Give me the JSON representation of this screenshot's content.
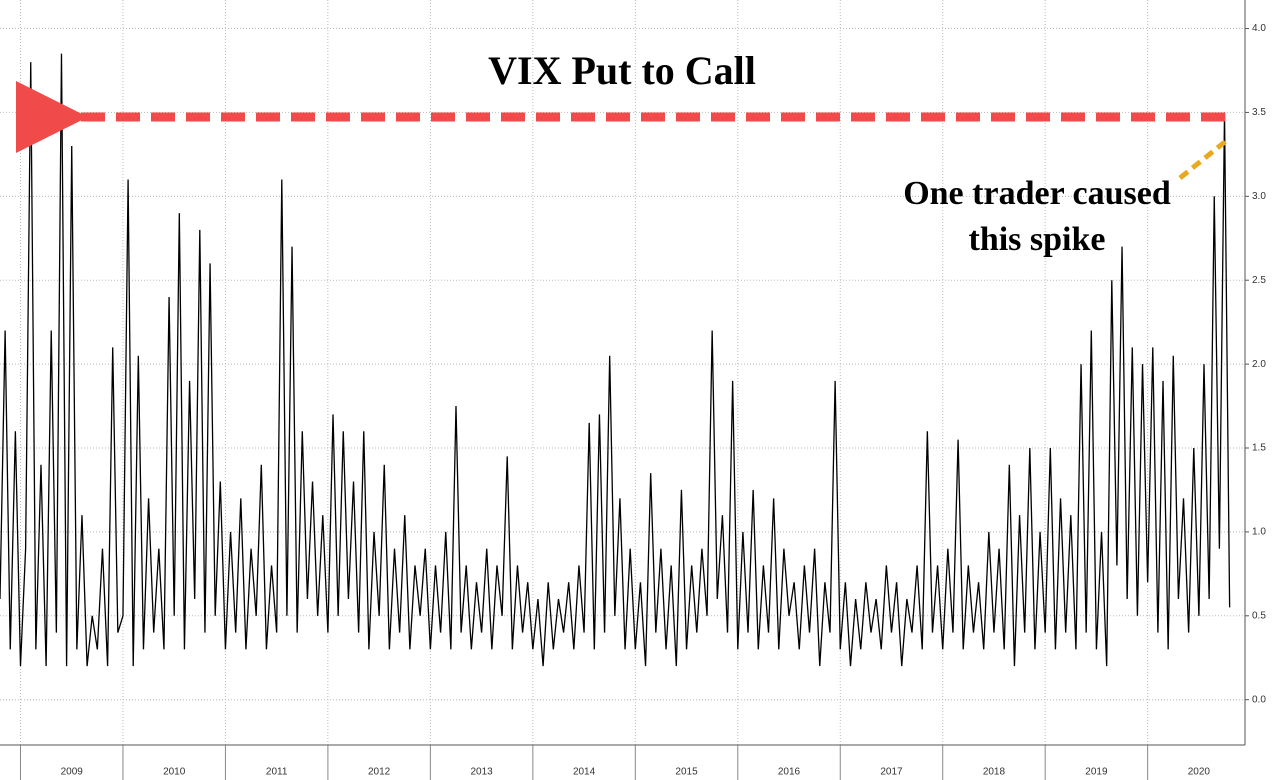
{
  "chart_data": {
    "type": "line",
    "title": "VIX Put to Call",
    "annotation": [
      "One trader caused",
      "this spike"
    ],
    "color": "#000000",
    "grid": true,
    "annotation_arrow_color": "#e8a820",
    "title_arrow_color": "#f04a4a",
    "xlim": [
      2008.8,
      2020.95
    ],
    "ylim": [
      -0.27,
      4.17
    ],
    "xticks": [
      {
        "value": 2009.5,
        "label": "2009"
      },
      {
        "value": 2010.5,
        "label": "2010"
      },
      {
        "value": 2011.5,
        "label": "2011"
      },
      {
        "value": 2012.5,
        "label": "2012"
      },
      {
        "value": 2013.5,
        "label": "2013"
      },
      {
        "value": 2014.5,
        "label": "2014"
      },
      {
        "value": 2015.5,
        "label": "2015"
      },
      {
        "value": 2016.5,
        "label": "2016"
      },
      {
        "value": 2017.5,
        "label": "2017"
      },
      {
        "value": 2018.5,
        "label": "2018"
      },
      {
        "value": 2019.5,
        "label": "2019"
      },
      {
        "value": 2020.5,
        "label": "2020"
      }
    ],
    "yticks": [
      {
        "value": 0,
        "label": "0.0"
      },
      0.5,
      {
        "value": 1,
        "label": "1.0"
      },
      1.5,
      {
        "value": 2,
        "label": "2.0"
      },
      2.5,
      {
        "value": 3,
        "label": "3.0"
      },
      3.5,
      {
        "value": 4,
        "label": "4.0"
      }
    ],
    "x": [
      2008.8,
      2008.85,
      2008.9,
      2008.95,
      2009.0,
      2009.05,
      2009.1,
      2009.15,
      2009.2,
      2009.25,
      2009.3,
      2009.35,
      2009.4,
      2009.45,
      2009.5,
      2009.55,
      2009.6,
      2009.65,
      2009.7,
      2009.75,
      2009.8,
      2009.85,
      2009.9,
      2009.95,
      2010.0,
      2010.05,
      2010.1,
      2010.15,
      2010.2,
      2010.25,
      2010.3,
      2010.35,
      2010.4,
      2010.45,
      2010.5,
      2010.55,
      2010.6,
      2010.65,
      2010.7,
      2010.75,
      2010.8,
      2010.85,
      2010.9,
      2010.95,
      2011.0,
      2011.05,
      2011.1,
      2011.15,
      2011.2,
      2011.25,
      2011.3,
      2011.35,
      2011.4,
      2011.45,
      2011.5,
      2011.55,
      2011.6,
      2011.65,
      2011.7,
      2011.75,
      2011.8,
      2011.85,
      2011.9,
      2011.95,
      2012.0,
      2012.05,
      2012.1,
      2012.15,
      2012.2,
      2012.25,
      2012.3,
      2012.35,
      2012.4,
      2012.45,
      2012.5,
      2012.55,
      2012.6,
      2012.65,
      2012.7,
      2012.75,
      2012.8,
      2012.85,
      2012.9,
      2012.95,
      2013.0,
      2013.05,
      2013.1,
      2013.15,
      2013.2,
      2013.25,
      2013.3,
      2013.35,
      2013.4,
      2013.45,
      2013.5,
      2013.55,
      2013.6,
      2013.65,
      2013.7,
      2013.75,
      2013.8,
      2013.85,
      2013.9,
      2013.95,
      2014.0,
      2014.05,
      2014.1,
      2014.15,
      2014.2,
      2014.25,
      2014.3,
      2014.35,
      2014.4,
      2014.45,
      2014.5,
      2014.55,
      2014.6,
      2014.65,
      2014.7,
      2014.75,
      2014.8,
      2014.85,
      2014.9,
      2014.95,
      2015.0,
      2015.05,
      2015.1,
      2015.15,
      2015.2,
      2015.25,
      2015.3,
      2015.35,
      2015.4,
      2015.45,
      2015.5,
      2015.55,
      2015.6,
      2015.65,
      2015.7,
      2015.75,
      2015.8,
      2015.85,
      2015.9,
      2015.95,
      2016.0,
      2016.05,
      2016.1,
      2016.15,
      2016.2,
      2016.25,
      2016.3,
      2016.35,
      2016.4,
      2016.45,
      2016.5,
      2016.55,
      2016.6,
      2016.65,
      2016.7,
      2016.75,
      2016.8,
      2016.85,
      2016.9,
      2016.95,
      2017.0,
      2017.05,
      2017.1,
      2017.15,
      2017.2,
      2017.25,
      2017.3,
      2017.35,
      2017.4,
      2017.45,
      2017.5,
      2017.55,
      2017.6,
      2017.65,
      2017.7,
      2017.75,
      2017.8,
      2017.85,
      2017.9,
      2017.95,
      2018.0,
      2018.05,
      2018.1,
      2018.15,
      2018.2,
      2018.25,
      2018.3,
      2018.35,
      2018.4,
      2018.45,
      2018.5,
      2018.55,
      2018.6,
      2018.65,
      2018.7,
      2018.75,
      2018.8,
      2018.85,
      2018.9,
      2018.95,
      2019.0,
      2019.05,
      2019.1,
      2019.15,
      2019.2,
      2019.25,
      2019.3,
      2019.35,
      2019.4,
      2019.45,
      2019.5,
      2019.55,
      2019.6,
      2019.65,
      2019.7,
      2019.75,
      2019.8,
      2019.85,
      2019.9,
      2019.95,
      2020.0,
      2020.05,
      2020.1,
      2020.15,
      2020.2,
      2020.25,
      2020.3,
      2020.35,
      2020.4,
      2020.45,
      2020.5,
      2020.55,
      2020.6,
      2020.65,
      2020.7,
      2020.75,
      2020.8
    ],
    "values": [
      0.6,
      2.2,
      0.3,
      1.6,
      0.2,
      0.9,
      3.8,
      0.3,
      1.4,
      0.2,
      2.2,
      0.4,
      3.85,
      0.2,
      3.3,
      0.3,
      1.1,
      0.2,
      0.5,
      0.3,
      0.9,
      0.2,
      2.1,
      0.4,
      0.5,
      3.1,
      0.2,
      2.05,
      0.3,
      1.2,
      0.4,
      0.9,
      0.3,
      2.4,
      0.5,
      2.9,
      0.3,
      1.9,
      0.6,
      2.8,
      0.4,
      2.6,
      0.5,
      1.3,
      0.3,
      1.0,
      0.4,
      1.2,
      0.3,
      0.9,
      0.5,
      1.4,
      0.3,
      0.8,
      0.4,
      3.1,
      0.5,
      2.7,
      0.4,
      1.6,
      0.6,
      1.3,
      0.5,
      1.1,
      0.4,
      1.7,
      0.5,
      1.6,
      0.6,
      1.3,
      0.4,
      1.6,
      0.3,
      1.0,
      0.5,
      1.4,
      0.3,
      0.9,
      0.4,
      1.1,
      0.3,
      0.8,
      0.5,
      0.9,
      0.3,
      0.8,
      0.4,
      1.0,
      0.3,
      1.75,
      0.4,
      0.8,
      0.3,
      0.7,
      0.4,
      0.9,
      0.3,
      0.8,
      0.5,
      1.45,
      0.3,
      0.8,
      0.4,
      0.7,
      0.3,
      0.6,
      0.2,
      0.7,
      0.3,
      0.6,
      0.4,
      0.7,
      0.3,
      0.8,
      0.4,
      1.65,
      0.3,
      1.7,
      0.4,
      2.05,
      0.5,
      1.2,
      0.3,
      0.9,
      0.3,
      0.7,
      0.2,
      1.35,
      0.4,
      0.9,
      0.3,
      0.8,
      0.2,
      1.25,
      0.3,
      0.8,
      0.4,
      0.9,
      0.5,
      2.2,
      0.6,
      1.1,
      0.4,
      1.9,
      0.3,
      1.0,
      0.4,
      1.25,
      0.3,
      0.8,
      0.4,
      1.2,
      0.3,
      0.9,
      0.5,
      0.7,
      0.3,
      0.8,
      0.4,
      0.9,
      0.2,
      0.7,
      0.4,
      1.9,
      0.3,
      0.7,
      0.2,
      0.6,
      0.3,
      0.7,
      0.4,
      0.6,
      0.3,
      0.8,
      0.4,
      0.7,
      0.2,
      0.6,
      0.4,
      0.8,
      0.3,
      1.6,
      0.4,
      0.8,
      0.3,
      0.9,
      0.4,
      1.55,
      0.3,
      0.8,
      0.4,
      0.7,
      0.3,
      1.0,
      0.4,
      0.9,
      0.3,
      1.4,
      0.2,
      1.1,
      0.4,
      1.5,
      0.3,
      1.0,
      0.4,
      1.5,
      0.3,
      1.2,
      0.4,
      1.1,
      0.3,
      2.0,
      0.4,
      2.2,
      0.3,
      1.0,
      0.2,
      2.5,
      0.8,
      2.7,
      0.6,
      2.1,
      0.5,
      2.0,
      0.7,
      2.1,
      0.4,
      1.9,
      0.3,
      2.05,
      0.6,
      1.2,
      0.4,
      1.5,
      0.5,
      2.0,
      0.6,
      3.0,
      0.9,
      3.5,
      0.55
    ]
  }
}
